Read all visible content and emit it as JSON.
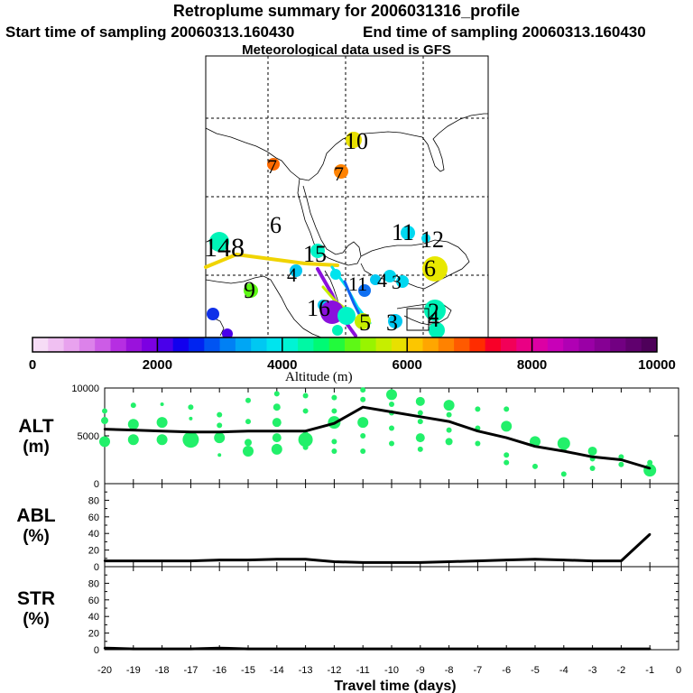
{
  "header": {
    "title": "Retroplume summary for 2006031316_profile",
    "start_label": "Start time of sampling 20060313.160430",
    "end_label": "End time of sampling 20060313.160430",
    "met_label": "Meteorological data used is GFS"
  },
  "colorbar": {
    "xlabel": "Altitude (m)",
    "ticks": [
      "0",
      "2000",
      "4000",
      "6000",
      "8000",
      "10000"
    ],
    "range": [
      0,
      10000
    ],
    "colors": [
      "#f6dcf6",
      "#f0c0f2",
      "#e8a2ee",
      "#dc82ea",
      "#cc5ce6",
      "#b62ee2",
      "#9a12dc",
      "#7c00e2",
      "#4a00ea",
      "#1200ee",
      "#0024f0",
      "#0054f2",
      "#0080f4",
      "#00a6f4",
      "#00c8f2",
      "#00e4ee",
      "#00f4d4",
      "#00f8a4",
      "#00fa74",
      "#22fa3c",
      "#5ef816",
      "#98f400",
      "#c6ee00",
      "#e8e000",
      "#fcc600",
      "#ffa600",
      "#ff8200",
      "#ff5a00",
      "#ff2c00",
      "#f80028",
      "#f20058",
      "#ea0084",
      "#dc00a4",
      "#c800b8",
      "#b000b4",
      "#9a00a6",
      "#860094",
      "#720082",
      "#60006e",
      "#4e005a"
    ]
  },
  "map": {
    "labels": [
      {
        "text": "10",
        "lon": 0.5,
        "lat": 0.4
      },
      {
        "text": "7",
        "lon": 0.4,
        "lat": 0.4
      },
      {
        "text": "6",
        "lon": 0.4,
        "lat": 0.4
      },
      {
        "text": "148",
        "lon": 0.4,
        "lat": 0.4
      },
      {
        "text": "11",
        "lon": 0.4,
        "lat": 0.4
      },
      {
        "text": "12",
        "lon": 0.4,
        "lat": 0.4
      },
      {
        "text": "15",
        "lon": 0.4,
        "lat": 0.4
      },
      {
        "text": "16",
        "lon": 0.4,
        "lat": 0.4
      },
      {
        "text": "9",
        "lon": 0.4,
        "lat": 0.4
      },
      {
        "text": "4",
        "lon": 0.4,
        "lat": 0.4
      },
      {
        "text": "3",
        "lon": 0.4,
        "lat": 0.4
      },
      {
        "text": "2",
        "lon": 0.4,
        "lat": 0.4
      },
      {
        "text": "5",
        "lon": 0.4,
        "lat": 0.4
      }
    ]
  },
  "chart_data": [
    {
      "type": "line",
      "panel": "ALT",
      "ylabel": "ALT",
      "yunit": "(m)",
      "ylim": [
        0,
        10000
      ],
      "yticks": [
        "0",
        "5000",
        "10000"
      ],
      "x": [
        -20,
        -19,
        -18,
        -17,
        -16,
        -15,
        -14,
        -13,
        -12,
        -11,
        -10,
        -9,
        -8,
        -7,
        -6,
        -5,
        -4,
        -3,
        -2,
        -1
      ],
      "values": [
        5700,
        5600,
        5500,
        5400,
        5400,
        5500,
        5500,
        5500,
        6300,
        8000,
        7500,
        7000,
        6500,
        5500,
        4800,
        3900,
        3400,
        2800,
        2500,
        1600
      ]
    },
    {
      "type": "line",
      "panel": "ABL",
      "ylabel": "ABL",
      "yunit": "(%)",
      "ylim": [
        0,
        100
      ],
      "yticks": [
        "0",
        "20",
        "40",
        "60",
        "80"
      ],
      "x": [
        -20,
        -19,
        -18,
        -17,
        -16,
        -15,
        -14,
        -13,
        -12,
        -11,
        -10,
        -9,
        -8,
        -7,
        -6,
        -5,
        -4,
        -3,
        -2,
        -1
      ],
      "values": [
        7,
        7,
        7,
        7,
        8,
        8,
        9,
        9,
        6,
        5,
        5,
        5,
        6,
        7,
        8,
        9,
        8,
        7,
        7,
        39
      ]
    },
    {
      "type": "line",
      "panel": "STR",
      "ylabel": "STR",
      "yunit": "(%)",
      "ylim": [
        0,
        100
      ],
      "yticks": [
        "0",
        "20",
        "40",
        "60",
        "80"
      ],
      "x": [
        -20,
        -19,
        -18,
        -17,
        -16,
        -15,
        -14,
        -13,
        -12,
        -11,
        -10,
        -9,
        -8,
        -7,
        -6,
        -5,
        -4,
        -3,
        -2,
        -1
      ],
      "values": [
        2,
        1,
        1,
        1,
        2,
        1,
        1,
        1,
        1,
        1,
        1,
        1,
        1,
        1,
        1,
        1,
        1,
        1,
        1,
        1
      ],
      "xlabel": "Travel time (days)",
      "xticks": [
        "-20",
        "-19",
        "-18",
        "-17",
        "-16",
        "-15",
        "-14",
        "-13",
        "-12",
        "-11",
        "-10",
        "-9",
        "-8",
        "-7",
        "-6",
        "-5",
        "-4",
        "-3",
        "-2",
        "-1",
        "0"
      ]
    }
  ]
}
